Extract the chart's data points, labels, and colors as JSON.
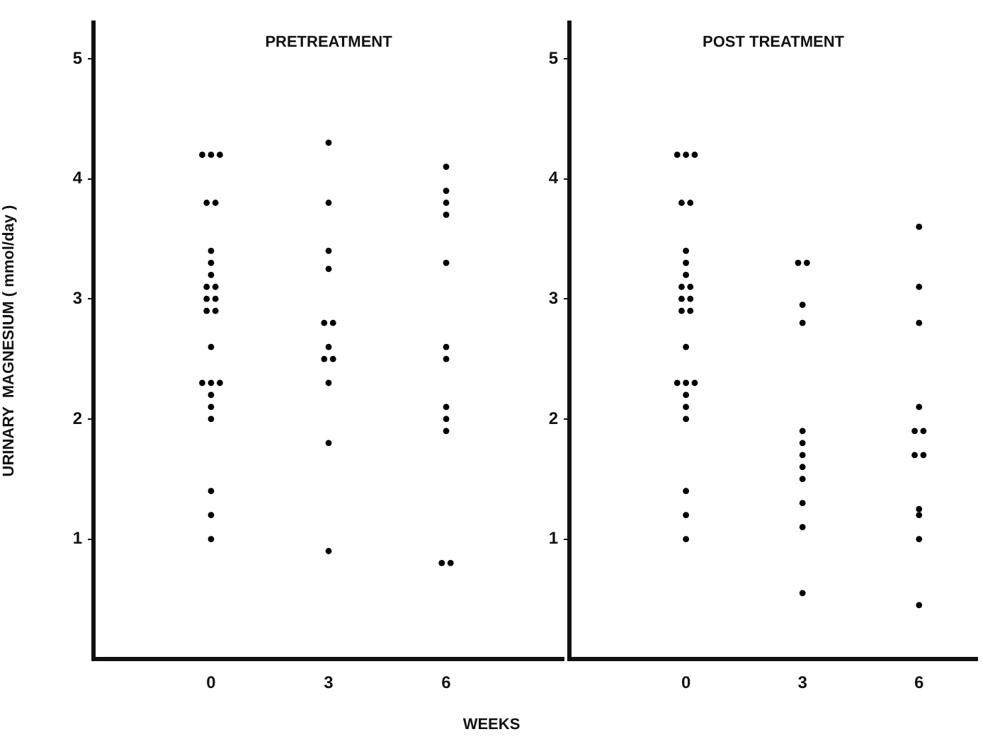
{
  "chart_data": [
    {
      "type": "scatter",
      "title": "PRETREATMENT",
      "xlabel": "WEEKS",
      "ylabel": "URINARY  MAGNESIUM ( mmol/day )",
      "categories": [
        "0",
        "3",
        "6"
      ],
      "ylim": [
        0,
        5.3
      ],
      "yticks": [
        1,
        2,
        3,
        4,
        5
      ],
      "grid": false,
      "legend": false,
      "marker": "circle",
      "series": [
        {
          "color": "#000000",
          "x": [
            "0",
            "0",
            "0",
            "0",
            "0",
            "0",
            "0",
            "0",
            "0",
            "0",
            "0",
            "0",
            "0",
            "0",
            "0",
            "0",
            "0",
            "0",
            "0",
            "0",
            "0",
            "0",
            "0",
            "0",
            "3",
            "3",
            "3",
            "3",
            "3",
            "3",
            "3",
            "3",
            "3",
            "3",
            "3",
            "3",
            "6",
            "6",
            "6",
            "6",
            "6",
            "6",
            "6",
            "6",
            "6",
            "6",
            "6",
            "6"
          ],
          "values": [
            4.2,
            4.2,
            4.2,
            3.8,
            3.8,
            3.4,
            3.3,
            3.2,
            3.1,
            3.1,
            3.0,
            3.0,
            2.9,
            2.9,
            2.6,
            2.3,
            2.3,
            2.3,
            2.2,
            2.1,
            2.0,
            1.4,
            1.2,
            1.0,
            4.3,
            3.8,
            3.4,
            3.25,
            2.8,
            2.8,
            2.6,
            2.5,
            2.5,
            2.3,
            1.8,
            0.9,
            4.1,
            3.9,
            3.8,
            3.7,
            3.3,
            2.6,
            2.5,
            2.1,
            2.0,
            1.9,
            0.8,
            0.8
          ]
        }
      ]
    },
    {
      "type": "scatter",
      "title": "POST TREATMENT",
      "categories": [
        "0",
        "3",
        "6"
      ],
      "ylim": [
        0,
        5.3
      ],
      "yticks": [
        1,
        2,
        3,
        4,
        5
      ],
      "grid": false,
      "legend": false,
      "marker": "circle",
      "series": [
        {
          "color": "#000000",
          "x": [
            "0",
            "0",
            "0",
            "0",
            "0",
            "0",
            "0",
            "0",
            "0",
            "0",
            "0",
            "0",
            "0",
            "0",
            "0",
            "0",
            "0",
            "0",
            "0",
            "0",
            "0",
            "0",
            "0",
            "0",
            "3",
            "3",
            "3",
            "3",
            "3",
            "3",
            "3",
            "3",
            "3",
            "3",
            "3",
            "3",
            "6",
            "6",
            "6",
            "6",
            "6",
            "6",
            "6",
            "6",
            "6",
            "6",
            "6",
            "6"
          ],
          "values": [
            4.2,
            4.2,
            4.2,
            3.8,
            3.8,
            3.4,
            3.3,
            3.2,
            3.1,
            3.1,
            3.0,
            3.0,
            2.9,
            2.9,
            2.6,
            2.3,
            2.3,
            2.3,
            2.2,
            2.1,
            2.0,
            1.4,
            1.2,
            1.0,
            3.3,
            3.3,
            2.95,
            2.8,
            1.9,
            1.8,
            1.7,
            1.6,
            1.5,
            1.3,
            1.1,
            0.55,
            3.6,
            3.1,
            2.8,
            2.1,
            1.9,
            1.9,
            1.7,
            1.7,
            1.25,
            1.2,
            1.0,
            0.45
          ]
        }
      ]
    }
  ]
}
